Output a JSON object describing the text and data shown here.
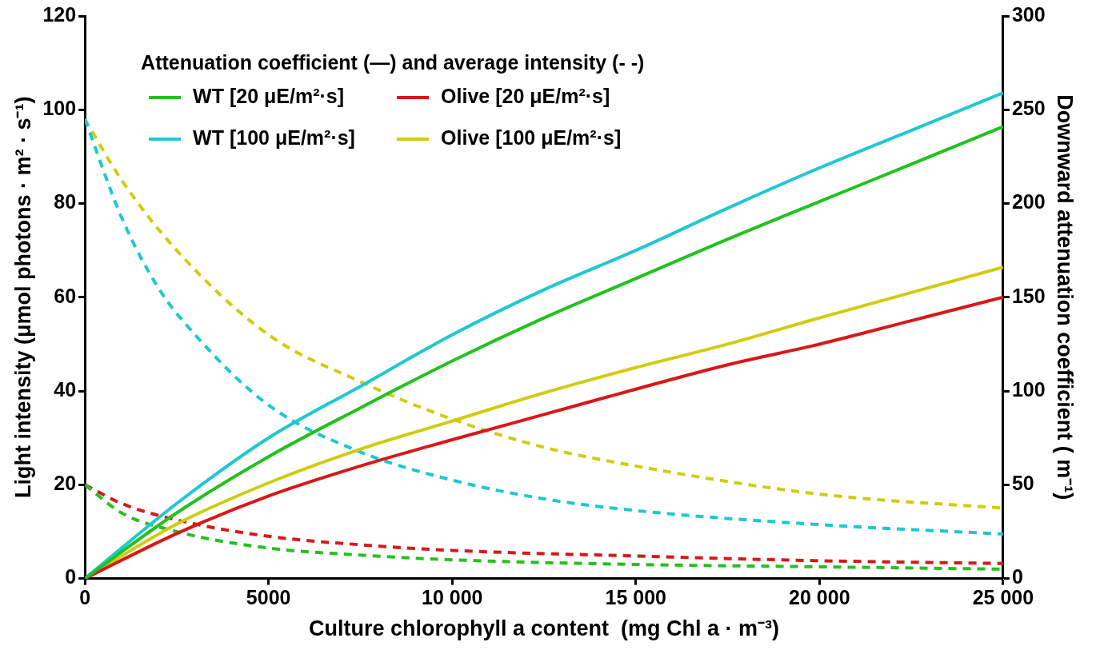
{
  "chart_data": {
    "type": "line",
    "xlabel": "Culture chlorophyll a content  (mg Chl a · m⁻³)",
    "ylabel": "Light intensity (μmol photons · m² · s⁻¹)",
    "y2label": "Downward attenuation coefficient ( m⁻¹)",
    "legend_title": "Attenuation coefficient (—) and average intensity (- -)",
    "legend": "top left",
    "grid": false,
    "marker": "none",
    "xlim": [
      0,
      25000
    ],
    "xticks": [
      0,
      5000,
      {
        "value": 10000,
        "label": "10 000"
      },
      {
        "value": 15000,
        "label": "15 000"
      },
      {
        "value": 20000,
        "label": "20 000"
      },
      {
        "value": 25000,
        "label": "25 000"
      }
    ],
    "ylim": [
      0,
      120
    ],
    "yticks": [
      0,
      20,
      40,
      60,
      80,
      100,
      120
    ],
    "y2lim": [
      0,
      300
    ],
    "y2ticks": [
      0,
      50,
      100,
      150,
      200,
      250,
      300
    ],
    "series": [
      {
        "name": "WT [20 μE/m²·s]",
        "color": "#22c21e",
        "axis": "y2",
        "line_style": "solid",
        "x": [
          0,
          2500,
          5000,
          7500,
          10000,
          12500,
          15000,
          17500,
          20000,
          22500,
          25000
        ],
        "values": [
          0,
          35,
          65,
          91,
          116,
          139,
          160,
          181,
          201,
          221,
          241
        ]
      },
      {
        "name": "Olive [20 μE/m²·s]",
        "color": "#d81818",
        "axis": "y2",
        "line_style": "solid",
        "x": [
          0,
          2500,
          5000,
          7500,
          10000,
          12500,
          15000,
          17500,
          20000,
          22500,
          25000
        ],
        "values": [
          0,
          24,
          44,
          60,
          74,
          87.5,
          101,
          114,
          125,
          137.5,
          150
        ]
      },
      {
        "name": "WT [100 μE/m²·s]",
        "color": "#1ec8d2",
        "axis": "y2",
        "line_style": "solid",
        "x": [
          0,
          2500,
          5000,
          7500,
          10000,
          12500,
          15000,
          17500,
          20000,
          22500,
          25000
        ],
        "values": [
          0,
          40,
          75,
          102.5,
          130,
          154,
          175,
          197.5,
          219,
          239,
          259
        ]
      },
      {
        "name": "Olive [100 μE/m²·s]",
        "color": "#cfcc10",
        "axis": "y2",
        "line_style": "solid",
        "x": [
          0,
          2500,
          5000,
          7500,
          10000,
          12500,
          15000,
          17500,
          20000,
          22500,
          25000
        ],
        "values": [
          0,
          29,
          51,
          69,
          84,
          99,
          112.5,
          125,
          139,
          152.5,
          166
        ]
      },
      {
        "color": "#22c21e",
        "axis": "y",
        "line_style": "dashed",
        "x": [
          0,
          1000,
          2500,
          5000,
          7500,
          10000,
          15000,
          20000,
          25000
        ],
        "values": [
          20,
          14,
          10,
          6.5,
          5,
          4,
          3,
          2.5,
          2
        ]
      },
      {
        "color": "#d81818",
        "axis": "y",
        "line_style": "dashed",
        "x": [
          0,
          1000,
          2500,
          5000,
          7500,
          10000,
          15000,
          20000,
          25000
        ],
        "values": [
          20,
          16,
          12.5,
          9,
          7.2,
          6,
          4.8,
          3.8,
          3.2
        ]
      },
      {
        "color": "#1ec8d2",
        "axis": "y",
        "line_style": "dashed",
        "x": [
          0,
          1000,
          2000,
          3000,
          5000,
          7500,
          10000,
          12500,
          15000,
          20000,
          25000
        ],
        "values": [
          98,
          77,
          62,
          52,
          37,
          27,
          21,
          17,
          14.5,
          11.5,
          9.5
        ]
      },
      {
        "color": "#cfcc10",
        "axis": "y",
        "line_style": "dashed",
        "x": [
          0,
          1000,
          2500,
          5000,
          7500,
          10000,
          12500,
          15000,
          20000,
          25000
        ],
        "values": [
          98,
          85,
          70,
          52,
          42,
          34,
          28,
          24,
          18,
          15
        ]
      }
    ]
  }
}
